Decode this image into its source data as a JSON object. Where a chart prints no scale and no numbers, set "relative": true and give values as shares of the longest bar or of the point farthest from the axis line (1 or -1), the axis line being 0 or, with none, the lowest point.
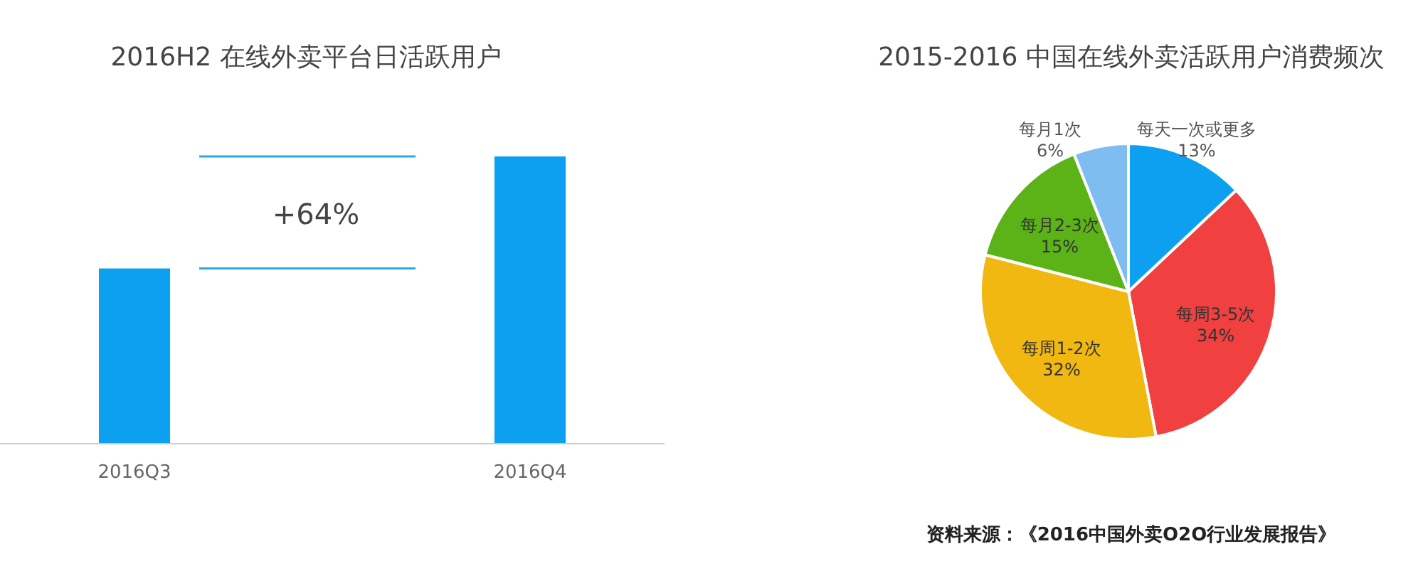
{
  "chart_data": [
    {
      "type": "bar",
      "title": "2016H2 在线外卖平台日活跃用户",
      "categories": [
        "2016Q3",
        "2016Q4"
      ],
      "values": [
        0.61,
        1
      ],
      "relative": true,
      "color": "#0ea0f0",
      "annotations": [
        "+64%"
      ]
    },
    {
      "type": "pie",
      "title": "2015-2016 中国在线外卖活跃用户消费频次",
      "categories": [
        "每天一次或更多",
        "每周3-5次",
        "每周1-2次",
        "每月2-3次",
        "每月1次"
      ],
      "values": [
        13,
        34,
        32,
        15,
        6
      ],
      "value_labels": [
        "13%",
        "34%",
        "32%",
        "15%",
        "6%"
      ],
      "colors": [
        "#0ea0f0",
        "#f04040",
        "#f0b810",
        "#5cb318",
        "#7fbdf0"
      ],
      "annotations": [
        "资料来源：《2016中国外卖O2O行业发展报告》"
      ]
    }
  ]
}
